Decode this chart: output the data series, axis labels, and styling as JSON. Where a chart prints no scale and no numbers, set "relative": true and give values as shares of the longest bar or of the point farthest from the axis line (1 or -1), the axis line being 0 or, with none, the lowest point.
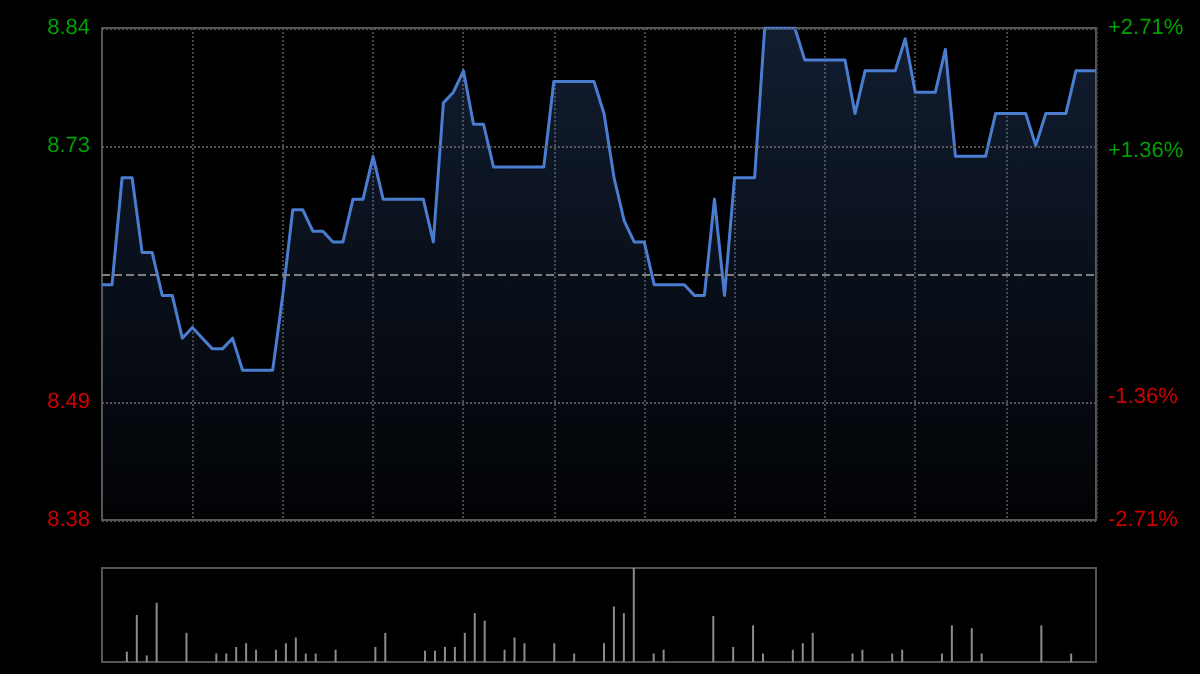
{
  "chart_data": [
    {
      "type": "area",
      "color": "#4a7cd0",
      "categories": [
        null,
        null,
        null,
        null,
        null,
        null,
        null,
        null,
        null,
        null,
        null,
        null,
        null,
        null,
        null,
        null,
        null,
        null,
        null,
        null,
        null,
        null,
        null,
        null,
        null,
        null,
        null,
        null,
        null,
        null,
        null,
        null,
        null,
        null,
        null,
        null,
        null,
        null,
        null,
        null,
        null,
        null,
        null,
        null,
        null,
        null,
        null,
        null,
        null,
        null,
        null,
        null,
        null,
        null,
        null,
        null,
        null,
        null,
        null,
        null,
        null,
        null,
        null,
        null,
        null,
        null,
        null,
        null,
        null,
        null,
        null,
        null,
        null,
        null,
        null,
        null,
        null,
        null,
        null,
        null,
        null,
        null,
        null,
        null,
        null,
        null,
        null,
        null,
        null,
        null,
        null,
        null,
        null,
        null,
        null,
        null,
        null,
        null,
        null,
        null
      ],
      "values": [
        8.6,
        8.6,
        8.7,
        8.7,
        8.63,
        8.63,
        8.59,
        8.59,
        8.55,
        8.56,
        8.55,
        8.54,
        8.54,
        8.55,
        8.52,
        8.52,
        8.52,
        8.52,
        8.59,
        8.67,
        8.67,
        8.65,
        8.65,
        8.64,
        8.64,
        8.68,
        8.68,
        8.72,
        8.68,
        8.68,
        8.68,
        8.68,
        8.68,
        8.64,
        8.77,
        8.78,
        8.8,
        8.75,
        8.75,
        8.71,
        8.71,
        8.71,
        8.71,
        8.71,
        8.71,
        8.79,
        8.79,
        8.79,
        8.79,
        8.79,
        8.76,
        8.7,
        8.66,
        8.64,
        8.64,
        8.6,
        8.6,
        8.6,
        8.6,
        8.59,
        8.59,
        8.68,
        8.59,
        8.7,
        8.7,
        8.7,
        8.84,
        8.84,
        8.84,
        8.84,
        8.81,
        8.81,
        8.81,
        8.81,
        8.81,
        8.76,
        8.8,
        8.8,
        8.8,
        8.8,
        8.83,
        8.78,
        8.78,
        8.78,
        8.82,
        8.72,
        8.72,
        8.72,
        8.72,
        8.76,
        8.76,
        8.76,
        8.76,
        8.73,
        8.76,
        8.76,
        8.76,
        8.8,
        8.8,
        8.8
      ],
      "ylim": [
        8.38,
        8.84
      ],
      "yticks": [
        8.38,
        8.49,
        8.73,
        8.84
      ],
      "y2lim": [
        -2.71,
        2.71
      ],
      "y2ticks": [
        {
          "value": -2.71,
          "label": "-2.71%"
        },
        {
          "value": -1.36,
          "label": "-1.36%"
        },
        {
          "value": 1.36,
          "label": "+1.36%"
        },
        {
          "value": 2.71,
          "label": "+2.71%"
        }
      ],
      "ref_lines": [
        {
          "axis": "y",
          "value": 8.61,
          "line_style": "dashed",
          "color": "#808080"
        }
      ],
      "grid": true
    },
    {
      "type": "bar",
      "relative": true,
      "color": "#8c8c8c",
      "tick_labels": false,
      "categories": [
        null,
        null,
        null,
        null,
        null,
        null,
        null,
        null,
        null,
        null,
        null,
        null,
        null,
        null,
        null,
        null,
        null,
        null,
        null,
        null,
        null,
        null,
        null,
        null,
        null,
        null,
        null,
        null,
        null,
        null,
        null,
        null,
        null,
        null,
        null,
        null,
        null,
        null,
        null,
        null,
        null,
        null,
        null,
        null,
        null,
        null,
        null,
        null,
        null,
        null,
        null,
        null,
        null,
        null,
        null,
        null,
        null,
        null,
        null,
        null,
        null,
        null,
        null,
        null,
        null,
        null,
        null,
        null,
        null,
        null,
        null,
        null,
        null,
        null,
        null,
        null,
        null,
        null,
        null,
        null,
        null,
        null,
        null,
        null,
        null,
        null,
        null,
        null,
        null,
        null,
        null,
        null,
        null,
        null,
        null,
        null,
        null,
        null,
        null,
        null
      ],
      "values": [
        null,
        null,
        0.11,
        0.5,
        0.07,
        0.63,
        null,
        null,
        0.31,
        null,
        null,
        0.09,
        0.09,
        0.16,
        0.2,
        0.13,
        null,
        0.13,
        0.2,
        0.26,
        0.09,
        0.09,
        null,
        0.13,
        null,
        null,
        null,
        0.16,
        0.31,
        null,
        null,
        null,
        0.12,
        0.12,
        0.16,
        0.16,
        0.31,
        0.52,
        0.44,
        null,
        0.13,
        0.26,
        0.2,
        null,
        null,
        0.2,
        null,
        0.09,
        null,
        null,
        0.2,
        0.59,
        0.52,
        1,
        null,
        0.09,
        0.13,
        null,
        null,
        null,
        null,
        0.49,
        null,
        0.16,
        null,
        0.39,
        0.09,
        null,
        null,
        0.13,
        0.2,
        0.31,
        null,
        null,
        null,
        0.09,
        0.13,
        null,
        null,
        0.09,
        0.13,
        null,
        null,
        null,
        0.09,
        0.39,
        null,
        0.36,
        0.09,
        null,
        null,
        null,
        null,
        null,
        0.39,
        null,
        null,
        0.09,
        null,
        null
      ]
    }
  ]
}
